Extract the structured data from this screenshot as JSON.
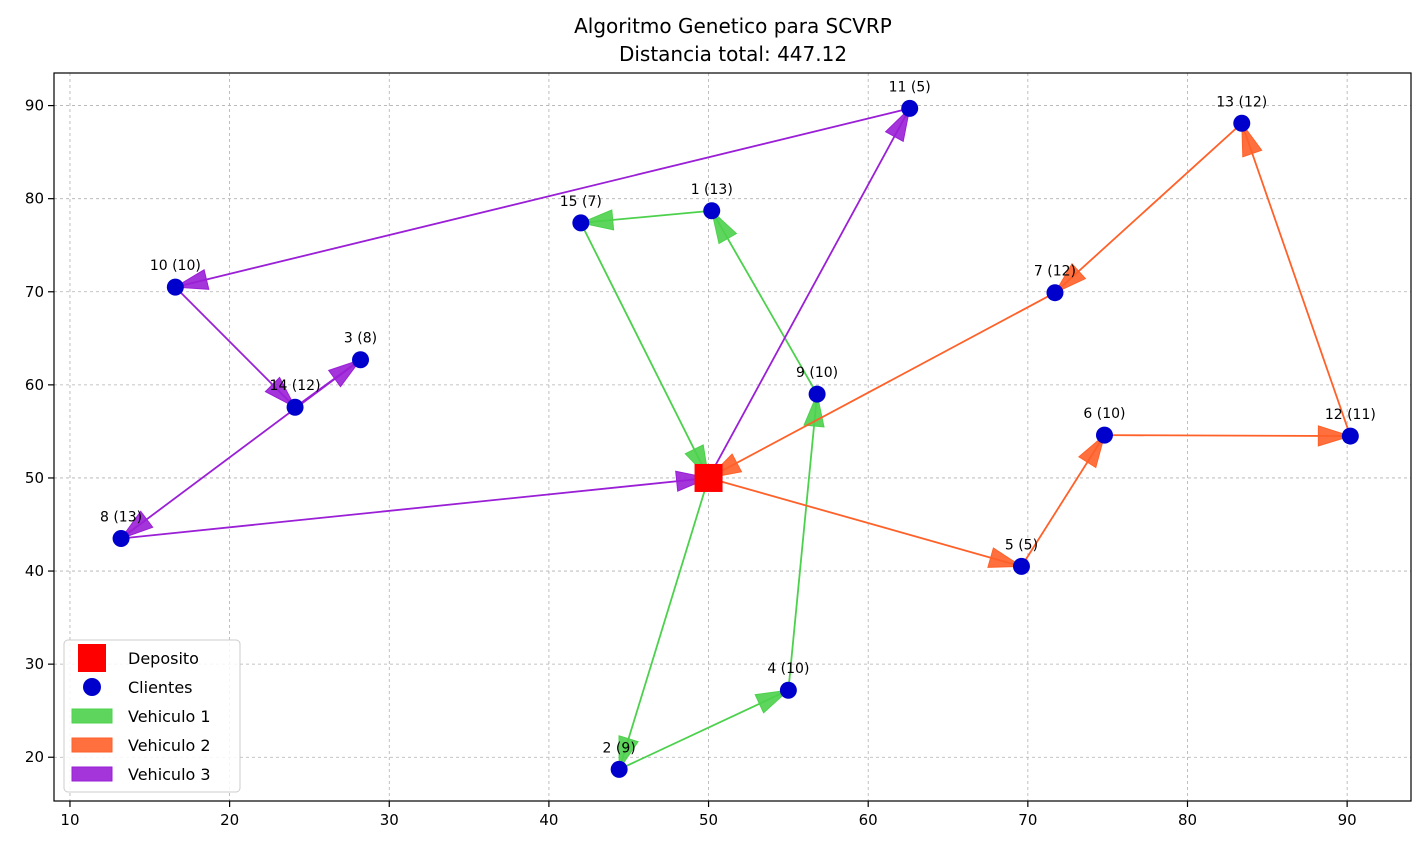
{
  "chart_data": {
    "type": "scatter",
    "title": "Algoritmo Genetico para SCVRP",
    "subtitle": "Distancia total: 447.12",
    "xlabel": "",
    "ylabel": "",
    "xlim": [
      9,
      94
    ],
    "ylim": [
      15.3,
      93.5
    ],
    "xticks": [
      10,
      20,
      30,
      40,
      50,
      60,
      70,
      80,
      90
    ],
    "yticks": [
      20,
      30,
      40,
      50,
      60,
      70,
      80,
      90
    ],
    "grid": true,
    "legend_position": "lower-left",
    "depot": {
      "name": "Deposito",
      "x": 50,
      "y": 50,
      "color": "#ff0000"
    },
    "customers": [
      {
        "id": 1,
        "label": "1 (13)",
        "x": 50.2,
        "y": 78.7
      },
      {
        "id": 2,
        "label": "2 (9)",
        "x": 44.4,
        "y": 18.7
      },
      {
        "id": 3,
        "label": "3 (8)",
        "x": 28.2,
        "y": 62.7
      },
      {
        "id": 4,
        "label": "4 (10)",
        "x": 55.0,
        "y": 27.2
      },
      {
        "id": 5,
        "label": "5 (5)",
        "x": 69.6,
        "y": 40.5
      },
      {
        "id": 6,
        "label": "6 (10)",
        "x": 74.8,
        "y": 54.6
      },
      {
        "id": 7,
        "label": "7 (12)",
        "x": 71.7,
        "y": 69.9
      },
      {
        "id": 8,
        "label": "8 (13)",
        "x": 13.2,
        "y": 43.5
      },
      {
        "id": 9,
        "label": "9 (10)",
        "x": 56.8,
        "y": 59.0
      },
      {
        "id": 10,
        "label": "10 (10)",
        "x": 16.6,
        "y": 70.5
      },
      {
        "id": 11,
        "label": "11 (5)",
        "x": 62.6,
        "y": 89.7
      },
      {
        "id": 12,
        "label": "12 (11)",
        "x": 90.2,
        "y": 54.5
      },
      {
        "id": 13,
        "label": "13 (12)",
        "x": 83.4,
        "y": 88.1
      },
      {
        "id": 14,
        "label": "14 (12)",
        "x": 24.1,
        "y": 57.6
      },
      {
        "id": 15,
        "label": "15 (7)",
        "x": 42.0,
        "y": 77.4
      }
    ],
    "customers_legend": "Clientes",
    "customer_color": "#0000cc",
    "series": [
      {
        "name": "Vehiculo 1",
        "color": "#4cd14c",
        "route": [
          0,
          2,
          4,
          9,
          1,
          15,
          0
        ]
      },
      {
        "name": "Vehiculo 2",
        "color": "#ff6129",
        "route": [
          0,
          5,
          6,
          12,
          13,
          7,
          0
        ]
      },
      {
        "name": "Vehiculo 3",
        "color": "#9a1fd6",
        "route": [
          0,
          11,
          10,
          14,
          3,
          8,
          0
        ]
      }
    ]
  }
}
